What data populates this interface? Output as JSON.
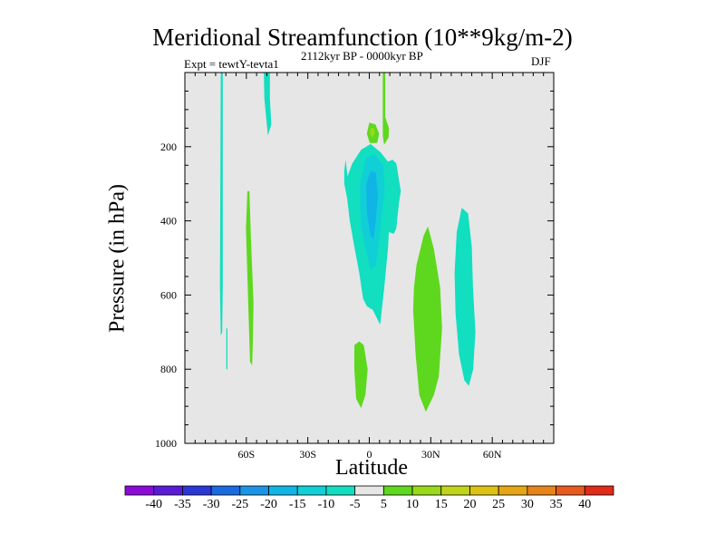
{
  "chart_data": {
    "type": "heatmap",
    "title": "Meridional Streamfunction (10**9kg/m-2)",
    "subtitle": "2112kyr BP - 0000kyr BP",
    "experiment": "Expt = tewtY-tevta1",
    "season": "DJF",
    "xlabel": "Latitude",
    "ylabel": "Pressure (in hPa)",
    "xlim": [
      -90,
      90
    ],
    "ylim": [
      1000,
      0
    ],
    "y_inverted": true,
    "x_ticks": [
      {
        "value": -60,
        "label": "60S"
      },
      {
        "value": -30,
        "label": "30S"
      },
      {
        "value": 0,
        "label": "0"
      },
      {
        "value": 30,
        "label": "30N"
      },
      {
        "value": 60,
        "label": "60N"
      }
    ],
    "y_ticks": [
      {
        "value": 200,
        "label": "200"
      },
      {
        "value": 400,
        "label": "400"
      },
      {
        "value": 600,
        "label": "600"
      },
      {
        "value": 800,
        "label": "800"
      },
      {
        "value": 1000,
        "label": "1000"
      }
    ],
    "background_color": "#e6e6e6",
    "colorbar": {
      "levels": [
        -40,
        -35,
        -30,
        -25,
        -20,
        -15,
        -10,
        -5,
        5,
        10,
        15,
        20,
        25,
        30,
        35,
        40
      ],
      "labels": [
        "-40",
        "-35",
        "-30",
        "-25",
        "-20",
        "-15",
        "-10",
        "-5",
        "5",
        "10",
        "15",
        "20",
        "25",
        "30",
        "35",
        "40"
      ],
      "colors": [
        "#8b0ad9",
        "#5a1ad6",
        "#2b37d6",
        "#1a6be0",
        "#1a95e6",
        "#10b5e6",
        "#10cfd6",
        "#12dec0",
        "#e6e6e6",
        "#5ed81e",
        "#9ad81a",
        "#c0d41a",
        "#dcc213",
        "#e6a613",
        "#e6841a",
        "#e65a1e",
        "#e02a1a"
      ]
    },
    "regions": [
      {
        "color": "#12dec0",
        "range": "-10 to -5",
        "points": [
          [
            -72.5,
            0
          ],
          [
            -71.5,
            0
          ],
          [
            -71.5,
            580
          ],
          [
            -71.8,
            700
          ],
          [
            -72.5,
            710
          ],
          [
            -72.9,
            580
          ]
        ]
      },
      {
        "color": "#12dec0",
        "range": "-10 to -5",
        "points": [
          [
            -69.8,
            690
          ],
          [
            -69.2,
            690
          ],
          [
            -69.2,
            800
          ],
          [
            -69.8,
            800
          ]
        ]
      },
      {
        "color": "#12dec0",
        "range": "-10 to -5",
        "points": [
          [
            -51.5,
            0
          ],
          [
            -48.5,
            0
          ],
          [
            -48.5,
            70
          ],
          [
            -47.8,
            140
          ],
          [
            -49.5,
            170
          ],
          [
            -51.2,
            70
          ]
        ]
      },
      {
        "color": "#5ed81e",
        "range": "5 to 10",
        "points": [
          [
            -59.5,
            320
          ],
          [
            -58.5,
            320
          ],
          [
            -57.8,
            440
          ],
          [
            -56.5,
            620
          ],
          [
            -56.8,
            720
          ],
          [
            -57.2,
            790
          ],
          [
            -58.2,
            780
          ],
          [
            -59.5,
            550
          ],
          [
            -60.2,
            420
          ]
        ]
      },
      {
        "color": "#5ed81e",
        "range": "5 to 10",
        "points": [
          [
            6.6,
            0
          ],
          [
            7.8,
            0
          ],
          [
            7.8,
            120
          ],
          [
            9.6,
            150
          ],
          [
            9.4,
            175
          ],
          [
            7.2,
            195
          ],
          [
            6.6,
            170
          ]
        ]
      },
      {
        "color": "#5ed81e",
        "range": "5 to 10",
        "points": [
          [
            0,
            135
          ],
          [
            3,
            140
          ],
          [
            4.8,
            165
          ],
          [
            3.8,
            190
          ],
          [
            0.2,
            190
          ],
          [
            -1.2,
            165
          ]
        ]
      },
      {
        "color": "#9ad81a",
        "range": "10 to 15",
        "points": [
          [
            0.6,
            150
          ],
          [
            2.4,
            150
          ],
          [
            2.7,
            165
          ],
          [
            1.5,
            175
          ],
          [
            0.3,
            165
          ]
        ]
      },
      {
        "color": "#12dec0",
        "range": "-10 to -5",
        "points": [
          [
            -12.2,
            265
          ],
          [
            -11.6,
            235
          ],
          [
            -10.6,
            280
          ],
          [
            -8.3,
            245
          ],
          [
            -4,
            208
          ],
          [
            0.6,
            193
          ],
          [
            5.5,
            215
          ],
          [
            9.1,
            240
          ],
          [
            11.3,
            235
          ],
          [
            13.2,
            245
          ],
          [
            15.4,
            320
          ],
          [
            14.5,
            350
          ],
          [
            13.2,
            420
          ],
          [
            12,
            435
          ],
          [
            9.5,
            430
          ],
          [
            9.2,
            470
          ],
          [
            7.3,
            580
          ],
          [
            5.3,
            680
          ],
          [
            1.7,
            640
          ],
          [
            -1.2,
            630
          ],
          [
            -3,
            610
          ],
          [
            -4.9,
            540
          ],
          [
            -7.3,
            470
          ],
          [
            -9.5,
            400
          ],
          [
            -10.8,
            340
          ],
          [
            -12.2,
            300
          ]
        ]
      },
      {
        "color": "#10cfd6",
        "range": "-15 to -10",
        "points": [
          [
            -4.5,
            300
          ],
          [
            -1.5,
            230
          ],
          [
            2.4,
            220
          ],
          [
            6.8,
            250
          ],
          [
            7.5,
            320
          ],
          [
            5.7,
            400
          ],
          [
            4.4,
            470
          ],
          [
            3.2,
            520
          ],
          [
            0.6,
            530
          ],
          [
            -1.5,
            480
          ],
          [
            -3.7,
            420
          ],
          [
            -4.5,
            360
          ]
        ]
      },
      {
        "color": "#10b5e6",
        "range": "-20 to -15",
        "points": [
          [
            -1.5,
            300
          ],
          [
            0.6,
            265
          ],
          [
            3.2,
            270
          ],
          [
            4.2,
            330
          ],
          [
            3.2,
            400
          ],
          [
            2,
            450
          ],
          [
            0.6,
            440
          ],
          [
            -1.2,
            380
          ]
        ]
      },
      {
        "color": "#5ed81e",
        "range": "5 to 10",
        "points": [
          [
            -7.3,
            735
          ],
          [
            -4.9,
            725
          ],
          [
            -2.7,
            735
          ],
          [
            -0.8,
            800
          ],
          [
            -1.9,
            870
          ],
          [
            -4,
            905
          ],
          [
            -6.4,
            880
          ],
          [
            -7.3,
            800
          ]
        ]
      },
      {
        "color": "#5ed81e",
        "range": "5 to 10",
        "points": [
          [
            23,
            520
          ],
          [
            26.5,
            440
          ],
          [
            28.6,
            415
          ],
          [
            31.5,
            475
          ],
          [
            34.6,
            580
          ],
          [
            35.5,
            690
          ],
          [
            33.9,
            820
          ],
          [
            31.5,
            870
          ],
          [
            27.6,
            915
          ],
          [
            24.4,
            870
          ],
          [
            22.6,
            760
          ],
          [
            21.4,
            640
          ],
          [
            21.8,
            580
          ]
        ]
      },
      {
        "color": "#12dec0",
        "range": "-10 to -5",
        "points": [
          [
            42.7,
            430
          ],
          [
            45.1,
            365
          ],
          [
            48.2,
            380
          ],
          [
            50,
            470
          ],
          [
            50.6,
            580
          ],
          [
            51.8,
            700
          ],
          [
            50.7,
            800
          ],
          [
            48.6,
            845
          ],
          [
            46.4,
            830
          ],
          [
            43.8,
            760
          ],
          [
            42.1,
            650
          ],
          [
            41.6,
            540
          ]
        ]
      }
    ]
  }
}
